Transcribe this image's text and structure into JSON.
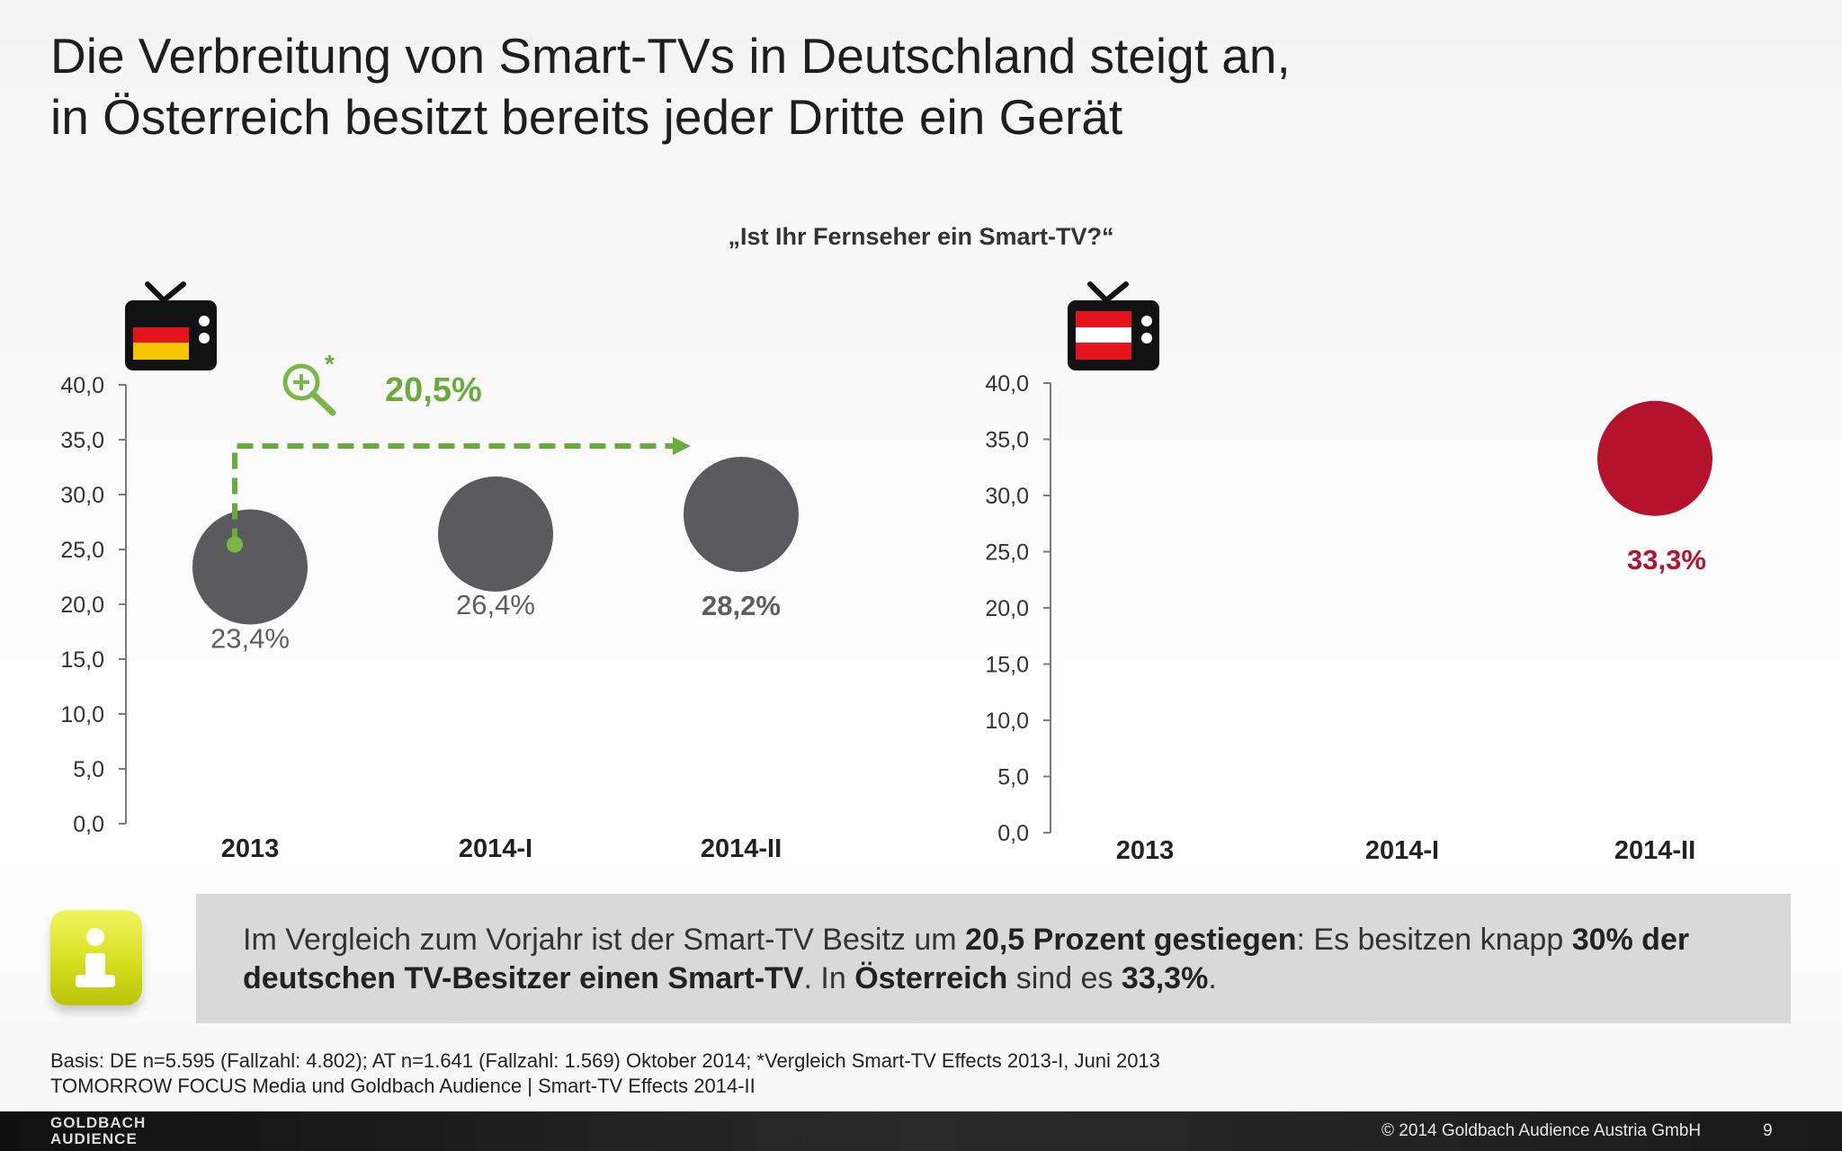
{
  "slide": {
    "title_line1": "Die Verbreitung von Smart-TVs in Deutschland steigt an,",
    "title_line2": "in Österreich besitzt bereits jeder Dritte ein Gerät",
    "question": "„Ist Ihr Fernseher ein Smart-TV?“"
  },
  "chart_data": [
    {
      "type": "scatter",
      "country": "DE",
      "categories": [
        "2013",
        "2014-I",
        "2014-II"
      ],
      "values": [
        23.4,
        26.4,
        28.2
      ],
      "value_labels": [
        "23,4%",
        "26,4%",
        "28,2%"
      ],
      "ylim": [
        0,
        40
      ],
      "yticks": [
        "0,0",
        "5,0",
        "10,0",
        "15,0",
        "20,0",
        "25,0",
        "30,0",
        "35,0",
        "40,0"
      ],
      "bubble_color": "#5b5b5d",
      "annotation": {
        "text": "20,5%",
        "marker": "*",
        "color": "#6aab3e"
      }
    },
    {
      "type": "scatter",
      "country": "AT",
      "categories": [
        "2013",
        "2014-I",
        "2014-II"
      ],
      "values": [
        null,
        null,
        33.3
      ],
      "value_labels": [
        "",
        "",
        "33,3%"
      ],
      "ylim": [
        0,
        40
      ],
      "yticks": [
        "0,0",
        "5,0",
        "10,0",
        "15,0",
        "20,0",
        "25,0",
        "30,0",
        "35,0",
        "40,0"
      ],
      "bubble_color": "#b5122e"
    }
  ],
  "info": {
    "t1": "Im Vergleich zum Vorjahr ist der Smart-TV Besitz um ",
    "b1": "20,5 Prozent gestiegen",
    "t2": ": Es besitzen knapp ",
    "b2": "30% der deutschen TV-Besitzer einen Smart-TV",
    "t3": ". In ",
    "b3": "Österreich",
    "t4": " sind es ",
    "b4": "33,3%",
    "t5": "."
  },
  "footnote": {
    "line1": "Basis: DE n=5.595 (Fallzahl: 4.802); AT n=1.641 (Fallzahl: 1.569) Oktober 2014; *Vergleich Smart-TV Effects 2013-I, Juni 2013",
    "line2": "TOMORROW FOCUS Media und Goldbach Audience | Smart-TV Effects 2014-II"
  },
  "footer": {
    "logo_line1": "GOLDBACH",
    "logo_line2": "AUDIENCE",
    "copyright": "© 2014 Goldbach Audience Austria GmbH",
    "page": "9"
  },
  "icons": {
    "de_tv": "tv-germany-flag-icon",
    "at_tv": "tv-austria-flag-icon",
    "zoom": "magnifier-plus-icon",
    "info": "info-icon"
  }
}
